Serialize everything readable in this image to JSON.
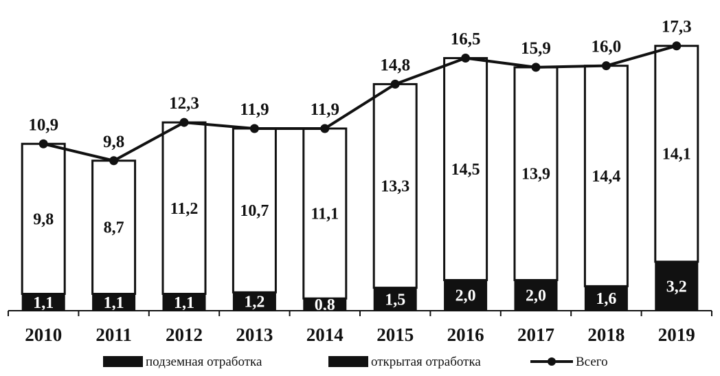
{
  "chart_data": {
    "type": "bar",
    "stacked": true,
    "categories": [
      "2010",
      "2011",
      "2012",
      "2013",
      "2014",
      "2015",
      "2016",
      "2017",
      "2018",
      "2019"
    ],
    "series": [
      {
        "name": "подземная отработка",
        "values": [
          1.1,
          1.1,
          1.1,
          1.2,
          0.8,
          1.5,
          2.0,
          2.0,
          1.6,
          3.2
        ],
        "labels": [
          "1,1",
          "1,1",
          "1,1",
          "1,2",
          "0,8",
          "1,5",
          "2,0",
          "2,0",
          "1,6",
          "3,2"
        ],
        "color": "#111111"
      },
      {
        "name": "открытая отработка",
        "values": [
          9.8,
          8.7,
          11.2,
          10.7,
          11.1,
          13.3,
          14.5,
          13.9,
          14.4,
          14.1
        ],
        "labels": [
          "9,8",
          "8,7",
          "11,2",
          "10,7",
          "11,1",
          "13,3",
          "14,5",
          "13,9",
          "14,4",
          "14,1"
        ],
        "color": "#ffffff"
      }
    ],
    "line": {
      "name": "Всего",
      "values": [
        10.9,
        9.8,
        12.3,
        11.9,
        11.9,
        14.8,
        16.5,
        15.9,
        16.0,
        17.3
      ],
      "labels": [
        "10,9",
        "9,8",
        "12,3",
        "11,9",
        "11,9",
        "14,8",
        "16,5",
        "15,9",
        "16,0",
        "17,3"
      ],
      "color": "#111111"
    },
    "ylim": [
      0,
      18.5
    ],
    "grid": false,
    "legend_position": "bottom"
  }
}
